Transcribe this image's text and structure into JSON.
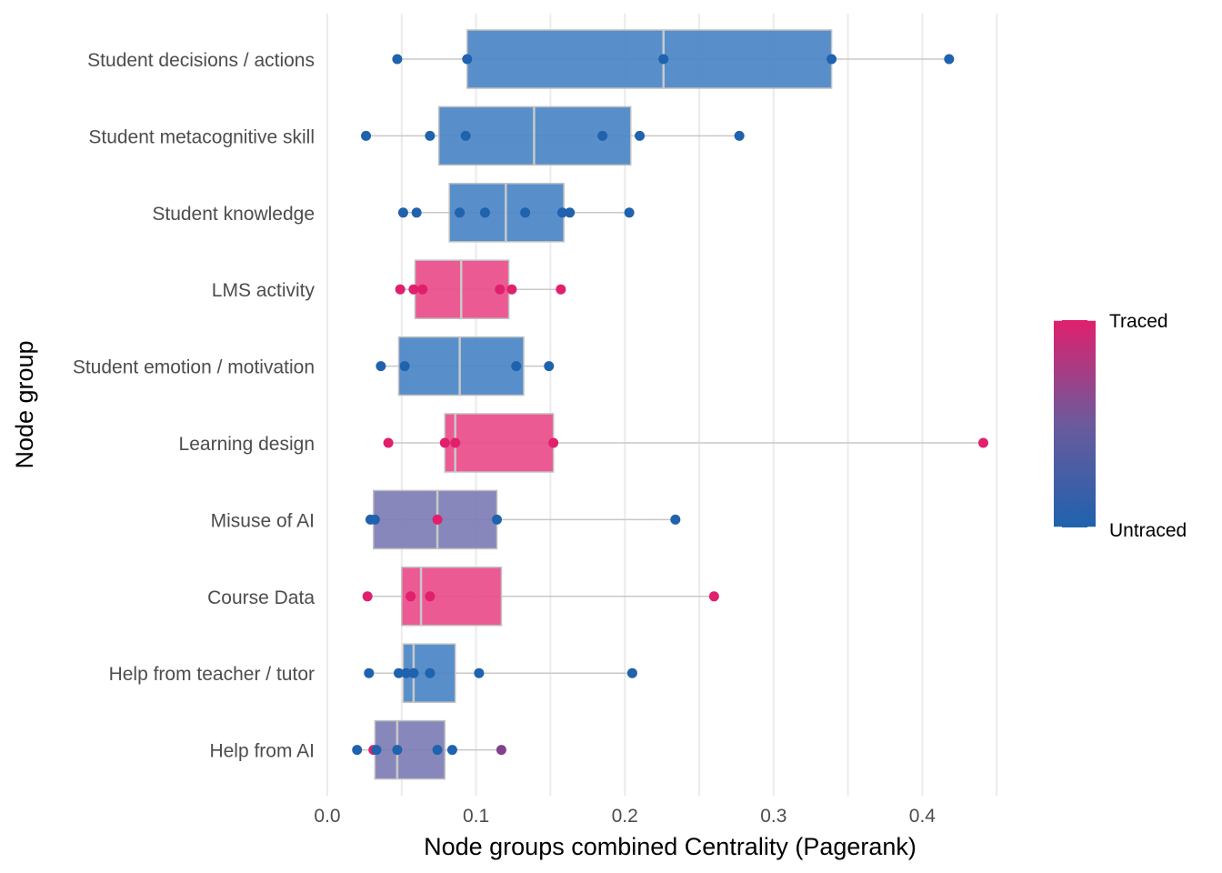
{
  "chart_data": {
    "type": "boxplot",
    "xlabel": "Node groups combined Centrality (Pagerank)",
    "ylabel": "Node group",
    "xlim": [
      0,
      0.45
    ],
    "x_ticks": [
      0.0,
      0.1,
      0.2,
      0.3,
      0.4
    ],
    "x_tick_labels": [
      "0.0",
      "0.1",
      "0.2",
      "0.3",
      "0.4"
    ],
    "grid": true,
    "legend": {
      "position": "right",
      "type": "colorbar",
      "labels": {
        "high": "Traced",
        "low": "Untraced"
      }
    },
    "colors": {
      "traced": "#e0206d",
      "untraced": "#1f62ad",
      "mixed": "#6b5a9c"
    },
    "groups": [
      {
        "name": "Student decisions / actions",
        "fill": "#4a86c6",
        "traced": 0.0,
        "q1": 0.094,
        "median": 0.226,
        "q3": 0.339,
        "points": [
          {
            "x": 0.047,
            "traced": 0
          },
          {
            "x": 0.094,
            "traced": 0
          },
          {
            "x": 0.226,
            "traced": 0
          },
          {
            "x": 0.339,
            "traced": 0
          },
          {
            "x": 0.418,
            "traced": 0
          }
        ]
      },
      {
        "name": "Student metacognitive skill",
        "fill": "#4a86c6",
        "traced": 0.0,
        "q1": 0.075,
        "median": 0.139,
        "q3": 0.204,
        "points": [
          {
            "x": 0.026,
            "traced": 0
          },
          {
            "x": 0.069,
            "traced": 0
          },
          {
            "x": 0.093,
            "traced": 0
          },
          {
            "x": 0.185,
            "traced": 0
          },
          {
            "x": 0.21,
            "traced": 0
          },
          {
            "x": 0.277,
            "traced": 0
          }
        ]
      },
      {
        "name": "Student knowledge",
        "fill": "#4a86c6",
        "traced": 0.0,
        "q1": 0.082,
        "median": 0.12,
        "q3": 0.159,
        "points": [
          {
            "x": 0.051,
            "traced": 0
          },
          {
            "x": 0.06,
            "traced": 0
          },
          {
            "x": 0.089,
            "traced": 0
          },
          {
            "x": 0.106,
            "traced": 0
          },
          {
            "x": 0.133,
            "traced": 0
          },
          {
            "x": 0.158,
            "traced": 0
          },
          {
            "x": 0.163,
            "traced": 0
          },
          {
            "x": 0.203,
            "traced": 0
          }
        ]
      },
      {
        "name": "LMS activity",
        "fill": "#ea4c8a",
        "traced": 1.0,
        "q1": 0.059,
        "median": 0.09,
        "q3": 0.122,
        "points": [
          {
            "x": 0.049,
            "traced": 1
          },
          {
            "x": 0.058,
            "traced": 1
          },
          {
            "x": 0.064,
            "traced": 1
          },
          {
            "x": 0.116,
            "traced": 1
          },
          {
            "x": 0.124,
            "traced": 1
          },
          {
            "x": 0.157,
            "traced": 1
          }
        ]
      },
      {
        "name": "Student emotion / motivation",
        "fill": "#4a86c6",
        "traced": 0.0,
        "q1": 0.048,
        "median": 0.089,
        "q3": 0.132,
        "points": [
          {
            "x": 0.036,
            "traced": 0
          },
          {
            "x": 0.052,
            "traced": 0
          },
          {
            "x": 0.127,
            "traced": 0
          },
          {
            "x": 0.149,
            "traced": 0
          }
        ]
      },
      {
        "name": "Learning design",
        "fill": "#ea4c8a",
        "traced": 1.0,
        "q1": 0.079,
        "median": 0.086,
        "q3": 0.152,
        "points": [
          {
            "x": 0.041,
            "traced": 1
          },
          {
            "x": 0.079,
            "traced": 1
          },
          {
            "x": 0.086,
            "traced": 1
          },
          {
            "x": 0.152,
            "traced": 1
          },
          {
            "x": 0.441,
            "traced": 1
          }
        ]
      },
      {
        "name": "Misuse of AI",
        "fill": "#7d7db5",
        "traced": 0.5,
        "q1": 0.031,
        "median": 0.074,
        "q3": 0.114,
        "points": [
          {
            "x": 0.029,
            "traced": 0
          },
          {
            "x": 0.032,
            "traced": 0
          },
          {
            "x": 0.074,
            "traced": 1
          },
          {
            "x": 0.114,
            "traced": 0
          },
          {
            "x": 0.234,
            "traced": 0
          }
        ]
      },
      {
        "name": "Course Data",
        "fill": "#ea4c8a",
        "traced": 1.0,
        "q1": 0.05,
        "median": 0.063,
        "q3": 0.117,
        "points": [
          {
            "x": 0.027,
            "traced": 1
          },
          {
            "x": 0.056,
            "traced": 1
          },
          {
            "x": 0.069,
            "traced": 1
          },
          {
            "x": 0.26,
            "traced": 1
          }
        ]
      },
      {
        "name": "Help from teacher / tutor",
        "fill": "#4a86c6",
        "traced": 0.0,
        "q1": 0.051,
        "median": 0.058,
        "q3": 0.086,
        "points": [
          {
            "x": 0.028,
            "traced": 0
          },
          {
            "x": 0.048,
            "traced": 0
          },
          {
            "x": 0.053,
            "traced": 0
          },
          {
            "x": 0.058,
            "traced": 0
          },
          {
            "x": 0.069,
            "traced": 0
          },
          {
            "x": 0.102,
            "traced": 0
          },
          {
            "x": 0.205,
            "traced": 0
          }
        ]
      },
      {
        "name": "Help from AI",
        "fill": "#7d7db5",
        "traced": 0.5,
        "q1": 0.032,
        "median": 0.047,
        "q3": 0.079,
        "points": [
          {
            "x": 0.02,
            "traced": 0
          },
          {
            "x": 0.031,
            "traced": 1
          },
          {
            "x": 0.033,
            "traced": 0
          },
          {
            "x": 0.047,
            "traced": 0
          },
          {
            "x": 0.074,
            "traced": 0
          },
          {
            "x": 0.084,
            "traced": 0
          },
          {
            "x": 0.117,
            "traced": 0.5
          }
        ]
      }
    ]
  }
}
